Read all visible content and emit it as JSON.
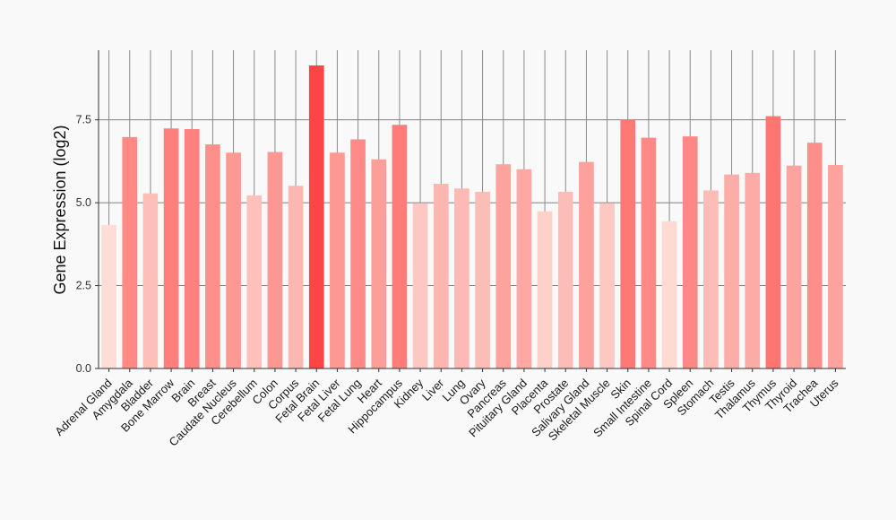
{
  "chart_data": {
    "type": "bar",
    "title": "",
    "xlabel": "",
    "ylabel": "Gene Expression (log2)",
    "ylim": [
      0,
      9.6
    ],
    "yticks": [
      0,
      2.5,
      5,
      7.5
    ],
    "ytick_labels": [
      "0.0",
      "2.5",
      "5.0",
      "7.5"
    ],
    "grid": true,
    "categories": [
      "Adrenal Gland",
      "Amygdala",
      "Bladder",
      "Bone Marrow",
      "Brain",
      "Breast",
      "Caudate Nucleus",
      "Cerebellum",
      "Colon",
      "Corpus",
      "Fetal Brain",
      "Fetal Liver",
      "Fetal Lung",
      "Heart",
      "Hippocampus",
      "Kidney",
      "Liver",
      "Lung",
      "Ovary",
      "Pancreas",
      "Pituitary Gland",
      "Placenta",
      "Prostate",
      "Salivary Gland",
      "Skeletal Muscle",
      "Skin",
      "Small Intestine",
      "Spinal Cord",
      "Spleen",
      "Stomach",
      "Testis",
      "Thalamus",
      "Thymus",
      "Thyroid",
      "Trachea",
      "Uterus"
    ],
    "values": [
      4.33,
      6.98,
      5.28,
      7.24,
      7.22,
      6.76,
      6.51,
      5.22,
      6.53,
      5.51,
      9.14,
      6.51,
      6.91,
      6.31,
      7.35,
      4.99,
      5.57,
      5.43,
      5.33,
      6.16,
      6.01,
      4.74,
      5.33,
      6.23,
      4.99,
      7.51,
      6.96,
      4.44,
      7.0,
      5.37,
      5.85,
      5.9,
      7.61,
      6.12,
      6.81,
      6.14
    ],
    "color_low": "#fdddd5",
    "color_high": "#fe4444"
  }
}
